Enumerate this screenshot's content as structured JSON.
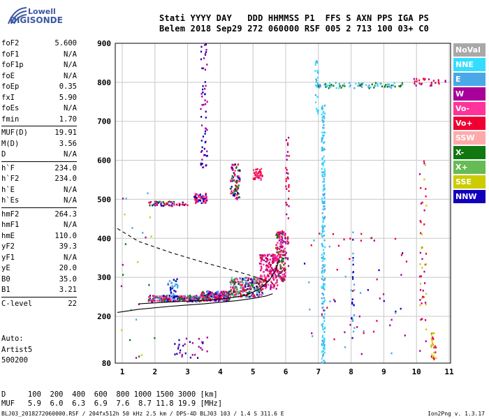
{
  "logo": {
    "line1": "Lowell",
    "line2": "DIGISONDE"
  },
  "header": {
    "row1": "Stati YYYY DAY   DDD HHMMSS P1  FFS S AXN PPS IGA PS",
    "row2": "Belem 2018 Sep29 272 060000 RSF 005 2 713 100 03+ C0"
  },
  "params_groups": [
    [
      {
        "name": "foF2",
        "value": "5.600"
      },
      {
        "name": "foF1",
        "value": "N/A"
      },
      {
        "name": "foF1p",
        "value": "N/A"
      },
      {
        "name": "foE",
        "value": "N/A"
      },
      {
        "name": "foEp",
        "value": "0.35"
      },
      {
        "name": "fxI",
        "value": "5.90"
      },
      {
        "name": "foEs",
        "value": "N/A"
      },
      {
        "name": "fmin",
        "value": "1.70"
      }
    ],
    [
      {
        "name": "MUF(D)",
        "value": "19.91"
      },
      {
        "name": "M(D)",
        "value": "3.56"
      },
      {
        "name": "D",
        "value": "N/A"
      }
    ],
    [
      {
        "name": "h`F",
        "value": "234.0"
      },
      {
        "name": "h`F2",
        "value": "234.0"
      },
      {
        "name": "h`E",
        "value": "N/A"
      },
      {
        "name": "h`Es",
        "value": "N/A"
      }
    ],
    [
      {
        "name": "hmF2",
        "value": "264.3"
      },
      {
        "name": "hmF1",
        "value": "N/A"
      },
      {
        "name": "hmE",
        "value": "110.0"
      },
      {
        "name": "yF2",
        "value": "39.3"
      },
      {
        "name": "yF1",
        "value": "N/A"
      },
      {
        "name": "yE",
        "value": "20.0"
      },
      {
        "name": "B0",
        "value": "35.0"
      },
      {
        "name": "B1",
        "value": "3.21"
      }
    ],
    [
      {
        "name": "C-level",
        "value": "22"
      }
    ]
  ],
  "auto": {
    "label": "Auto:",
    "artist": "Artist5",
    "version": "500200"
  },
  "legend": [
    {
      "label": "NoVal",
      "color": "#a8a8a8"
    },
    {
      "label": "NNE",
      "color": "#33ddff"
    },
    {
      "label": "E",
      "color": "#4aa8e8"
    },
    {
      "label": "W",
      "color": "#a8009a"
    },
    {
      "label": "Vo-",
      "color": "#ff3399"
    },
    {
      "label": "Vo+",
      "color": "#ee0033"
    },
    {
      "label": "SSW",
      "color": "#ffaaaa"
    },
    {
      "label": "X-",
      "color": "#117711"
    },
    {
      "label": "X+",
      "color": "#66bb55"
    },
    {
      "label": "SSE",
      "color": "#cccc00"
    },
    {
      "label": "NNW",
      "color": "#1100bb"
    }
  ],
  "muf_table": {
    "row1": "D     100  200  400  600  800 1000 1500 3000 [km]",
    "row2": "MUF   5.9  6.0  6.3  6.9  7.6  8.7 11.8 19.9 [MHz]"
  },
  "footer": "BLJ03_2018272060000.RSF / 204fx512h 50 kHz 2.5 km / DPS-4D BLJ03 103 / 1.4 S 311.6 E",
  "footer_right": "Ion2Png v. 1.3.17",
  "chart_data": {
    "type": "scatter",
    "title": "",
    "xlabel": "",
    "ylabel": "",
    "xlim": [
      0.85,
      11
    ],
    "ylim": [
      80,
      900
    ],
    "xticks": [
      1,
      2,
      3,
      4,
      5,
      6,
      7,
      8,
      9,
      10,
      11
    ],
    "yticks": [
      80,
      200,
      300,
      400,
      500,
      600,
      700,
      800,
      900
    ],
    "grid": true,
    "legend_position": "right",
    "lines": [
      {
        "name": "profile",
        "style": "solid",
        "points": [
          [
            0.85,
            210
          ],
          [
            1.5,
            218
          ],
          [
            2.5,
            226
          ],
          [
            3.5,
            232
          ],
          [
            4.5,
            240
          ],
          [
            5.0,
            246
          ],
          [
            5.4,
            252
          ],
          [
            5.6,
            258
          ]
        ]
      },
      {
        "name": "trace",
        "style": "solid",
        "points": [
          [
            1.5,
            232
          ],
          [
            2.5,
            237
          ],
          [
            3.5,
            241
          ],
          [
            4.2,
            246
          ],
          [
            4.8,
            254
          ],
          [
            5.2,
            270
          ],
          [
            5.5,
            292
          ],
          [
            5.7,
            320
          ],
          [
            5.8,
            345
          ]
        ]
      },
      {
        "name": "extrapolation",
        "style": "dashed",
        "points": [
          [
            0.85,
            425
          ],
          [
            1.5,
            392
          ],
          [
            2.5,
            363
          ],
          [
            3.5,
            338
          ],
          [
            4.2,
            322
          ],
          [
            4.8,
            308
          ],
          [
            5.3,
            295
          ],
          [
            5.6,
            285
          ]
        ]
      }
    ],
    "clusters": [
      {
        "x": [
          1.8,
          3.4
        ],
        "y": [
          238,
          254
        ],
        "n": 220,
        "colors": [
          "#ee0033",
          "#ff3399",
          "#117711",
          "#1100bb",
          "#4aa8e8",
          "#a8009a"
        ]
      },
      {
        "x": [
          3.4,
          4.3
        ],
        "y": [
          240,
          265
        ],
        "n": 200,
        "colors": [
          "#ee0033",
          "#ff3399",
          "#117711",
          "#1100bb",
          "#4aa8e8",
          "#a8009a"
        ]
      },
      {
        "x": [
          4.3,
          5.3
        ],
        "y": [
          250,
          300
        ],
        "n": 260,
        "colors": [
          "#ee0033",
          "#ff3399",
          "#117711",
          "#1100bb",
          "#4aa8e8",
          "#66bb55"
        ]
      },
      {
        "x": [
          5.2,
          5.75
        ],
        "y": [
          270,
          360
        ],
        "n": 180,
        "colors": [
          "#ee0033",
          "#ff3399",
          "#a8009a"
        ]
      },
      {
        "x": [
          5.7,
          6.0
        ],
        "y": [
          290,
          420
        ],
        "n": 160,
        "colors": [
          "#ee0033",
          "#ff3399",
          "#a8009a",
          "#117711"
        ]
      },
      {
        "x": [
          1.8,
          3.0
        ],
        "y": [
          483,
          495
        ],
        "n": 60,
        "colors": [
          "#ee0033",
          "#ff3399",
          "#117711",
          "#1100bb"
        ]
      },
      {
        "x": [
          3.2,
          3.6
        ],
        "y": [
          490,
          515
        ],
        "n": 60,
        "colors": [
          "#ee0033",
          "#ff3399",
          "#1100bb"
        ]
      },
      {
        "x": [
          4.3,
          4.6
        ],
        "y": [
          500,
          590
        ],
        "n": 90,
        "colors": [
          "#ee0033",
          "#ff3399",
          "#117711",
          "#1100bb"
        ]
      },
      {
        "x": [
          5.0,
          5.3
        ],
        "y": [
          550,
          580
        ],
        "n": 40,
        "colors": [
          "#ee0033",
          "#ff3399"
        ]
      },
      {
        "x": [
          3.4,
          3.6
        ],
        "y": [
          580,
          900
        ],
        "n": 60,
        "colors": [
          "#1100bb",
          "#a8009a"
        ]
      },
      {
        "x": [
          2.4,
          2.7
        ],
        "y": [
          250,
          300
        ],
        "n": 40,
        "colors": [
          "#1100bb",
          "#4aa8e8"
        ]
      },
      {
        "x": [
          2.6,
          3.6
        ],
        "y": [
          90,
          150
        ],
        "n": 30,
        "colors": [
          "#1100bb",
          "#a8009a"
        ]
      },
      {
        "x": [
          7.1,
          7.2
        ],
        "y": [
          80,
          750
        ],
        "n": 220,
        "colors": [
          "#4aa8e8",
          "#33ddff"
        ]
      },
      {
        "x": [
          6.9,
          7.0
        ],
        "y": [
          720,
          860
        ],
        "n": 25,
        "colors": [
          "#4aa8e8",
          "#33ddff"
        ]
      },
      {
        "x": [
          6.95,
          9.6
        ],
        "y": [
          785,
          800
        ],
        "n": 80,
        "colors": [
          "#4aa8e8",
          "#33ddff",
          "#117711"
        ]
      },
      {
        "x": [
          6.0,
          6.1
        ],
        "y": [
          320,
          680
        ],
        "n": 40,
        "colors": [
          "#ee0033",
          "#a8009a"
        ]
      },
      {
        "x": [
          10.1,
          10.3
        ],
        "y": [
          110,
          600
        ],
        "n": 50,
        "colors": [
          "#ee0033",
          "#a8009a",
          "#cccc00"
        ]
      },
      {
        "x": [
          10.45,
          10.6
        ],
        "y": [
          90,
          160
        ],
        "n": 30,
        "colors": [
          "#cccc00",
          "#ee0033"
        ]
      },
      {
        "x": [
          9.9,
          10.9
        ],
        "y": [
          790,
          810
        ],
        "n": 25,
        "colors": [
          "#ee0033",
          "#a8009a"
        ]
      },
      {
        "x": [
          8.0,
          8.1
        ],
        "y": [
          140,
          430
        ],
        "n": 25,
        "colors": [
          "#4aa8e8",
          "#1100bb"
        ]
      },
      {
        "x": [
          6.5,
          9.8
        ],
        "y": [
          85,
          420
        ],
        "n": 60,
        "colors": [
          "#4aa8e8",
          "#a8009a",
          "#1100bb",
          "#ee0033"
        ]
      },
      {
        "x": [
          0.95,
          2.0
        ],
        "y": [
          85,
          520
        ],
        "n": 25,
        "colors": [
          "#4aa8e8",
          "#a8009a",
          "#cccc00",
          "#117711"
        ]
      }
    ]
  }
}
